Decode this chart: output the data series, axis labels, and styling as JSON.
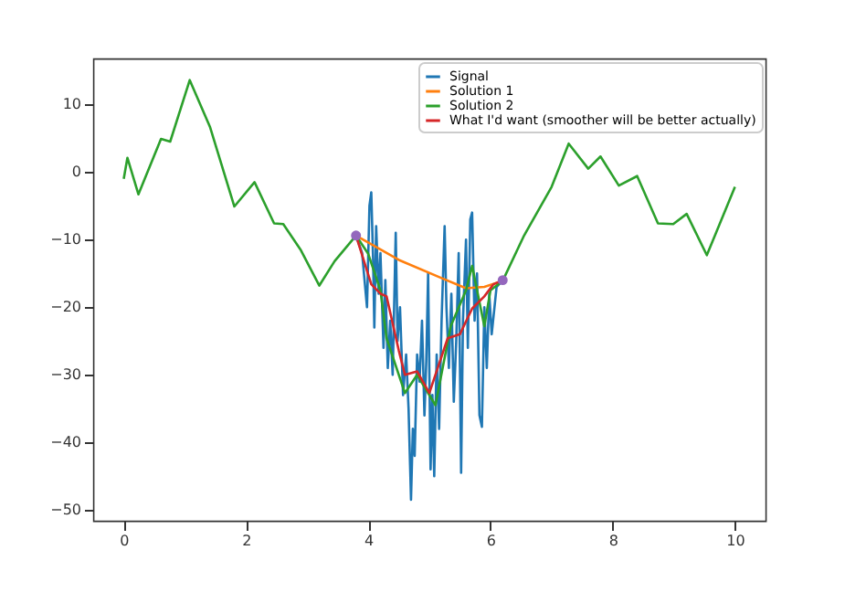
{
  "chart_data": {
    "type": "line",
    "xlim": [
      -0.5,
      10.5
    ],
    "ylim": [
      -51.6,
      16.8
    ],
    "xticks": [
      0,
      2,
      4,
      6,
      8,
      10
    ],
    "yticks": [
      -50,
      -40,
      -30,
      -20,
      -10,
      0,
      10
    ],
    "legend": "top right",
    "series": [
      {
        "name": "Signal",
        "color": "#1f77b4",
        "x": [
          3.8,
          3.9,
          3.98,
          4.02,
          4.05,
          4.08,
          4.1,
          4.13,
          4.17,
          4.2,
          4.25,
          4.28,
          4.32,
          4.36,
          4.4,
          4.45,
          4.48,
          4.52,
          4.57,
          4.62,
          4.66,
          4.7,
          4.73,
          4.76,
          4.8,
          4.84,
          4.88,
          4.92,
          4.95,
          4.98,
          5.02,
          5.05,
          5.08,
          5.12,
          5.16,
          5.2,
          5.25,
          5.28,
          5.32,
          5.36,
          5.4,
          5.44,
          5.48,
          5.52,
          5.55,
          5.6,
          5.63,
          5.67,
          5.7,
          5.74,
          5.78,
          5.82,
          5.86,
          5.9,
          5.94,
          5.98,
          6.02,
          6.1,
          6.2
        ],
        "values": [
          -9.4,
          -12,
          -20,
          -5,
          -3,
          -13,
          -23,
          -8,
          -18,
          -12,
          -26,
          -16,
          -29,
          -22,
          -30,
          -9,
          -25,
          -20,
          -33,
          -27,
          -35,
          -48.5,
          -38,
          -42,
          -27,
          -31,
          -22,
          -36,
          -28,
          -15,
          -44,
          -33,
          -45,
          -27,
          -38,
          -22,
          -8,
          -20,
          -29,
          -18,
          -34,
          -25,
          -12,
          -44.5,
          -22,
          -10,
          -26,
          -7,
          -6,
          -22,
          -15,
          -36,
          -37.7,
          -20,
          -29,
          -18,
          -24,
          -17,
          -16
        ]
      },
      {
        "name": "Solution 1",
        "color": "#ff7f0e",
        "x": [
          3.8,
          4.5,
          5.2,
          5.6,
          5.9,
          6.2
        ],
        "values": [
          -9.4,
          -13,
          -15.7,
          -17.2,
          -17,
          -16.1
        ]
      },
      {
        "name": "Solution 2",
        "color": "#2ca02c",
        "x": [
          0,
          0.06,
          0.24,
          0.61,
          0.76,
          1.08,
          1.41,
          1.81,
          2.14,
          2.46,
          2.61,
          2.9,
          3.2,
          3.45,
          3.8,
          4.0,
          4.2,
          4.3,
          4.6,
          4.8,
          5.1,
          5.35,
          5.6,
          5.7,
          5.9,
          6.0,
          6.2,
          6.55,
          7.0,
          7.28,
          7.6,
          7.8,
          8.1,
          8.4,
          8.74,
          8.99,
          9.21,
          9.54,
          10
        ],
        "values": [
          -1,
          2.1,
          -3.3,
          4.9,
          4.5,
          13.6,
          6.7,
          -5.1,
          -1.5,
          -7.6,
          -7.7,
          -11.6,
          -16.8,
          -13.2,
          -9.4,
          -12.1,
          -17.5,
          -24.6,
          -32.7,
          -30,
          -34.5,
          -22.8,
          -17.5,
          -13.9,
          -22.8,
          -17.5,
          -16.1,
          -9.4,
          -2.2,
          4.2,
          0.5,
          2.3,
          -2,
          -0.6,
          -7.6,
          -7.7,
          -6.2,
          -12.3,
          -2.2
        ]
      },
      {
        "name": "What I'd want (smoother will be better actually)",
        "color": "#d62728",
        "x": [
          3.8,
          4.05,
          4.2,
          4.3,
          4.5,
          4.6,
          4.8,
          5.0,
          5.3,
          5.5,
          5.7,
          5.9,
          6.05,
          6.2
        ],
        "values": [
          -9.4,
          -16.6,
          -18,
          -18.4,
          -26.4,
          -30,
          -29.5,
          -32.7,
          -24.6,
          -24,
          -20.2,
          -18.4,
          -16.6,
          -16
        ]
      },
      {
        "type": "scatter",
        "marker": "circle",
        "color": "#9467bd",
        "x": [
          3.8,
          6.2
        ],
        "values": [
          -9.4,
          -16
        ]
      }
    ]
  }
}
